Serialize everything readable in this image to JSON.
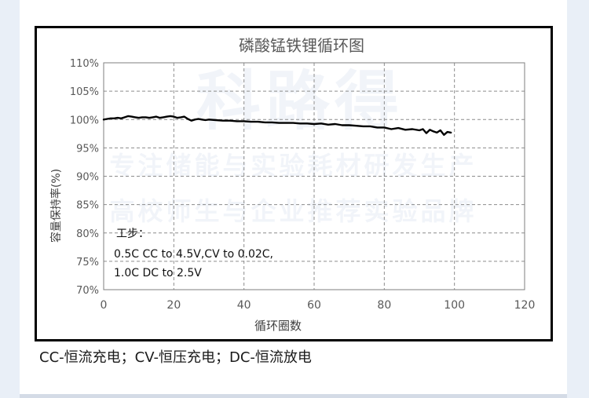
{
  "watermark": {
    "brand": "科路得",
    "line1": "专注储能与实验耗材研发生产",
    "line2": "高校师生与企业推荐实验品牌"
  },
  "footnote": "CC-恒流充电；CV-恒压充电；DC-恒流放电",
  "chart_data": {
    "type": "line",
    "title": "磷酸锰铁锂循环图",
    "xlabel": "循环圈数",
    "ylabel": "容量保持率(%)",
    "xlim": [
      0,
      120
    ],
    "ylim": [
      70,
      110
    ],
    "xticks": [
      0,
      20,
      40,
      60,
      80,
      100,
      120
    ],
    "xtick_labels": [
      "0",
      "20",
      "40",
      "60",
      "80",
      "100",
      "120"
    ],
    "yticks": [
      70,
      75,
      80,
      85,
      90,
      95,
      100,
      105,
      110
    ],
    "ytick_labels": [
      "70%",
      "75%",
      "80%",
      "85%",
      "90%",
      "95%",
      "100%",
      "105%",
      "110%"
    ],
    "grid": "dashed",
    "line_color": "#000000",
    "annotation": {
      "title": "工步：",
      "lines": [
        "0.5C CC to 4.5V,CV to 0.02C,",
        "1.0C DC to 2.5V"
      ]
    },
    "series": [
      {
        "name": "",
        "x": [
          0,
          1,
          2,
          3,
          4,
          5,
          6,
          7,
          8,
          9,
          10,
          11,
          12,
          13,
          14,
          15,
          16,
          17,
          18,
          19,
          20,
          21,
          22,
          23,
          24,
          25,
          26,
          27,
          28,
          29,
          30,
          32,
          34,
          36,
          38,
          40,
          42,
          44,
          46,
          48,
          50,
          52,
          54,
          56,
          58,
          60,
          62,
          64,
          66,
          68,
          70,
          72,
          74,
          76,
          78,
          80,
          82,
          84,
          86,
          88,
          90,
          91,
          92,
          93,
          94,
          95,
          96,
          97,
          98,
          99
        ],
        "y": [
          100.0,
          100.1,
          100.2,
          100.2,
          100.3,
          100.2,
          100.4,
          100.6,
          100.5,
          100.4,
          100.3,
          100.4,
          100.4,
          100.3,
          100.4,
          100.5,
          100.3,
          100.4,
          100.5,
          100.6,
          100.5,
          100.3,
          100.4,
          100.5,
          100.1,
          99.8,
          100.0,
          100.1,
          100.0,
          99.9,
          100.0,
          99.9,
          99.8,
          99.8,
          99.7,
          99.7,
          99.6,
          99.6,
          99.5,
          99.5,
          99.4,
          99.4,
          99.4,
          99.3,
          99.3,
          99.2,
          99.3,
          99.1,
          99.2,
          99.0,
          99.0,
          98.9,
          98.8,
          98.8,
          98.6,
          98.6,
          98.3,
          98.5,
          98.2,
          98.3,
          98.1,
          98.3,
          97.6,
          98.2,
          97.9,
          97.7,
          98.1,
          97.3,
          97.8,
          97.7
        ]
      }
    ]
  }
}
